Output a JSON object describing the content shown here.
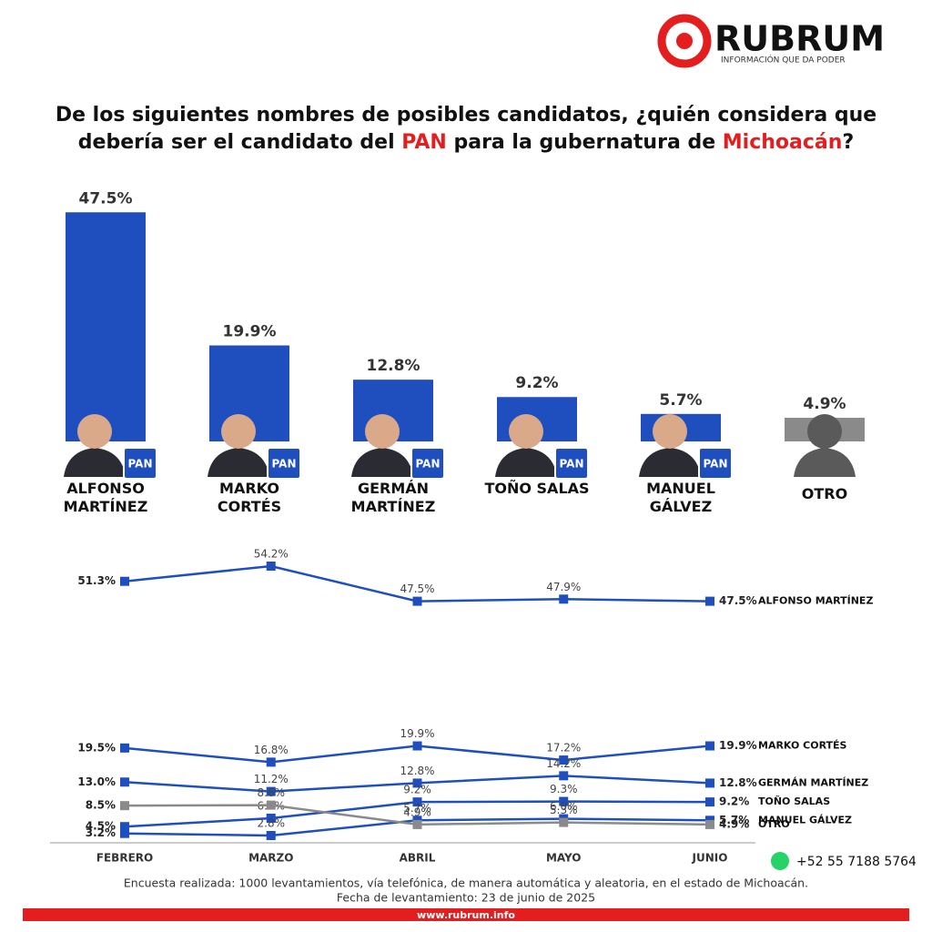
{
  "header": {
    "brand": "RUBRUM",
    "tagline": "INFORMACIÓN QUE DA PODER",
    "title": [
      "De los siguientes nombres de posibles candidatos, ¿quién considera que debería ser el candidato del ",
      "PAN",
      " para la gubernatura de ",
      "Michoacán",
      "?"
    ]
  },
  "chart_data": [
    {
      "type": "bar",
      "badge": "PAN",
      "categories": [
        "ALFONSO MARTÍNEZ",
        "MARKO CORTÉS",
        "GERMÁN MARTÍNEZ",
        "TOÑO SALAS",
        "MANUEL GÁLVEZ",
        "OTRO"
      ],
      "values": [
        47.5,
        19.9,
        12.8,
        9.2,
        5.7,
        4.9
      ],
      "value_labels": [
        "47.5%",
        "19.9%",
        "12.8%",
        "9.2%",
        "5.7%",
        "4.9%"
      ],
      "colors": [
        "#1f4fbf",
        "#1f4fbf",
        "#1f4fbf",
        "#1f4fbf",
        "#1f4fbf",
        "#8a8a8a"
      ]
    },
    {
      "type": "line",
      "categories": [
        "FEBRERO",
        "MARZO",
        "ABRIL",
        "MAYO",
        "JUNIO"
      ],
      "series": [
        {
          "name": "ALFONSO MARTÍNEZ",
          "color": "#1f4fbf",
          "values": [
            51.3,
            54.2,
            47.5,
            47.9,
            47.5
          ],
          "value_labels": [
            "51.3%",
            "54.2%",
            "47.5%",
            "47.9%",
            "47.5%"
          ]
        },
        {
          "name": "MARKO CORTÉS",
          "color": "#1f4fbf",
          "values": [
            19.5,
            16.8,
            19.9,
            17.2,
            19.9
          ],
          "value_labels": [
            "19.5%",
            "16.8%",
            "19.9%",
            "17.2%",
            "19.9%"
          ]
        },
        {
          "name": "GERMÁN MARTÍNEZ",
          "color": "#1f4fbf",
          "values": [
            13.0,
            11.2,
            12.8,
            14.2,
            12.8
          ],
          "value_labels": [
            "13.0%",
            "11.2%",
            "12.8%",
            "14.2%",
            "12.8%"
          ]
        },
        {
          "name": "TOÑO SALAS",
          "color": "#1f4fbf",
          "values": [
            4.5,
            6.1,
            9.2,
            9.3,
            9.2
          ],
          "value_labels": [
            "4.5%",
            "6.1%",
            "9.2%",
            "9.3%",
            "9.2%"
          ]
        },
        {
          "name": "MANUEL GÁLVEZ",
          "color": "#1f4fbf",
          "values": [
            3.2,
            2.8,
            5.7,
            6.0,
            5.7
          ],
          "value_labels": [
            "3.2%",
            "2.8%",
            "5.7%",
            "6.0%",
            "5.7%"
          ]
        },
        {
          "name": "OTRO",
          "color": "#8a8a8a",
          "values": [
            8.5,
            8.6,
            4.9,
            5.3,
            4.9
          ],
          "value_labels": [
            "8.5%",
            "8.6%",
            "4.9%",
            "5.3%",
            "4.9%"
          ]
        }
      ]
    }
  ],
  "footer": {
    "phone": "+52 55 7188 5764",
    "note": "Encuesta realizada: 1000 levantamientos, vía telefónica, de manera automática y aleatoria, en el estado de Michoacán.",
    "date": "Fecha de levantamiento: 23 de junio de 2025",
    "url": "www.rubrum.info"
  }
}
